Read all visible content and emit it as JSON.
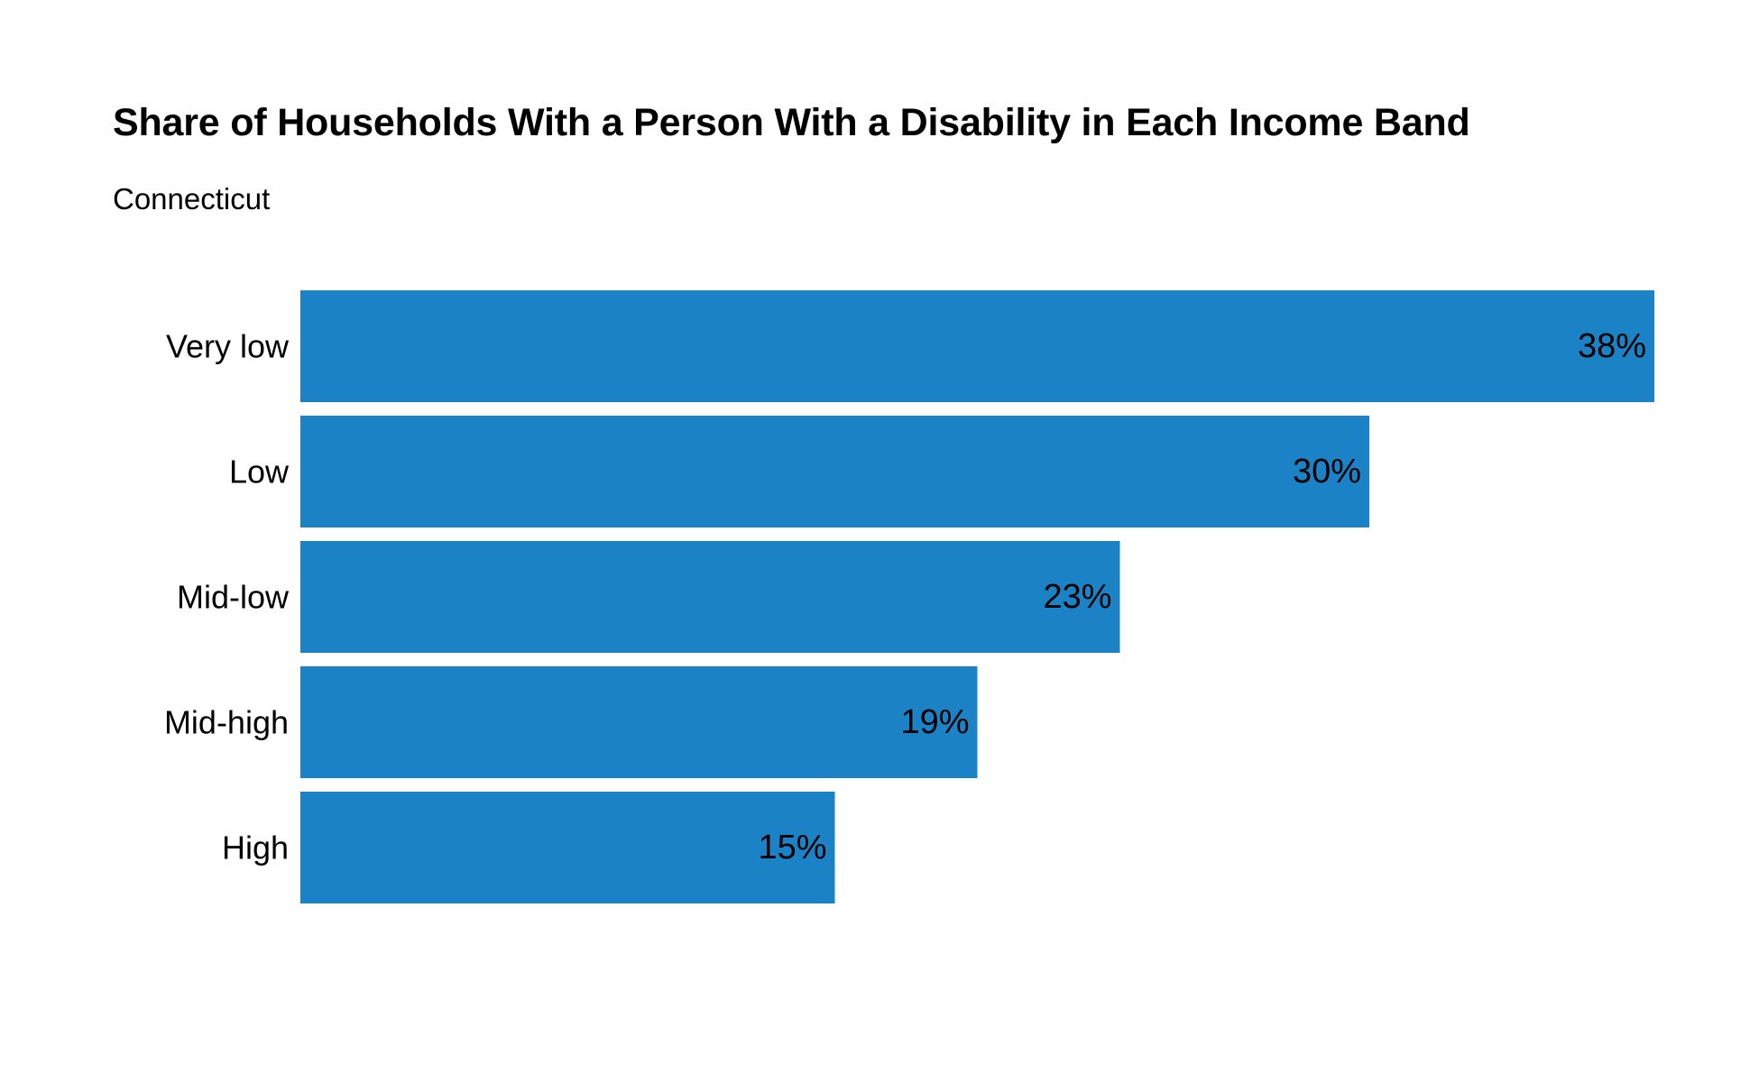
{
  "chart_data": {
    "type": "bar",
    "orientation": "horizontal",
    "title": "Share of Households With a Person With a Disability in Each Income Band",
    "subtitle": "Connecticut",
    "xlabel": "",
    "ylabel": "",
    "categories": [
      "Very low",
      "Low",
      "Mid-low",
      "Mid-high",
      "High"
    ],
    "values": [
      38,
      30,
      23,
      19,
      15
    ],
    "value_labels": [
      "38%",
      "30%",
      "23%",
      "19%",
      "15%"
    ],
    "unit": "%",
    "xlim": [
      0,
      38
    ],
    "grid": false,
    "legend": "none",
    "bar_color": "#1b82c6"
  }
}
